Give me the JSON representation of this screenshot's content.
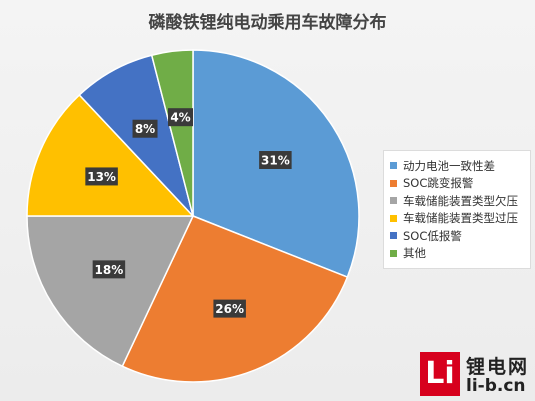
{
  "chart_data": {
    "type": "pie",
    "title": "磷酸铁锂纯电动乘用车故障分布",
    "categories": [
      "动力电池一致性差",
      "SOC跳变报警",
      "车载储能装置类型欠压",
      "车载储能装置类型过压",
      "SOC低报警",
      "其他"
    ],
    "values": [
      31,
      26,
      18,
      13,
      8,
      4
    ],
    "labels": [
      "31%",
      "26%",
      "18%",
      "13%",
      "8%",
      "4%"
    ],
    "colors": [
      "#5b9bd5",
      "#ed7d31",
      "#a5a5a5",
      "#ffc000",
      "#4472c4",
      "#70ad47"
    ],
    "legend_position": "right"
  },
  "logo": {
    "box_text": "Li",
    "cn_text": "锂电网",
    "en_text": "li-b.cn"
  }
}
